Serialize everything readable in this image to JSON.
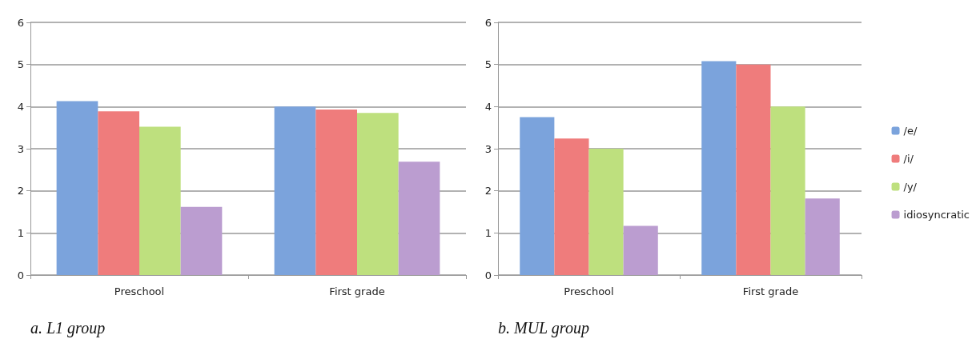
{
  "chart_data": [
    {
      "type": "bar",
      "categories": [
        "Preschool",
        "First grade"
      ],
      "ylim": [
        0,
        6
      ],
      "yticks": [
        0,
        1,
        2,
        3,
        4,
        5,
        6
      ],
      "grid": "y",
      "legend": false,
      "series": [
        {
          "color": "#7ba3dc",
          "values": [
            4.13,
            4.0
          ]
        },
        {
          "color": "#ef7c7c",
          "values": [
            3.89,
            3.93
          ]
        },
        {
          "color": "#bee07e",
          "values": [
            3.52,
            3.85
          ]
        },
        {
          "color": "#bb9dd0",
          "values": [
            1.62,
            2.69
          ]
        }
      ],
      "annotations": [
        "a. L1 group"
      ]
    },
    {
      "type": "bar",
      "categories": [
        "Preschool",
        "First grade"
      ],
      "ylim": [
        0,
        6
      ],
      "yticks": [
        0,
        1,
        2,
        3,
        4,
        5,
        6
      ],
      "grid": "y",
      "legend": "right",
      "series": [
        {
          "name": "/e/",
          "color": "#7ba3dc",
          "values": [
            3.75,
            5.08
          ]
        },
        {
          "name": "/i/",
          "color": "#ef7c7c",
          "values": [
            3.24,
            5.0
          ]
        },
        {
          "name": "/y/",
          "color": "#bee07e",
          "values": [
            3.0,
            4.0
          ]
        },
        {
          "name": "idiosyncratic",
          "color": "#bb9dd0",
          "values": [
            1.17,
            1.82
          ]
        }
      ],
      "annotations": [
        "b. MUL group"
      ]
    }
  ]
}
